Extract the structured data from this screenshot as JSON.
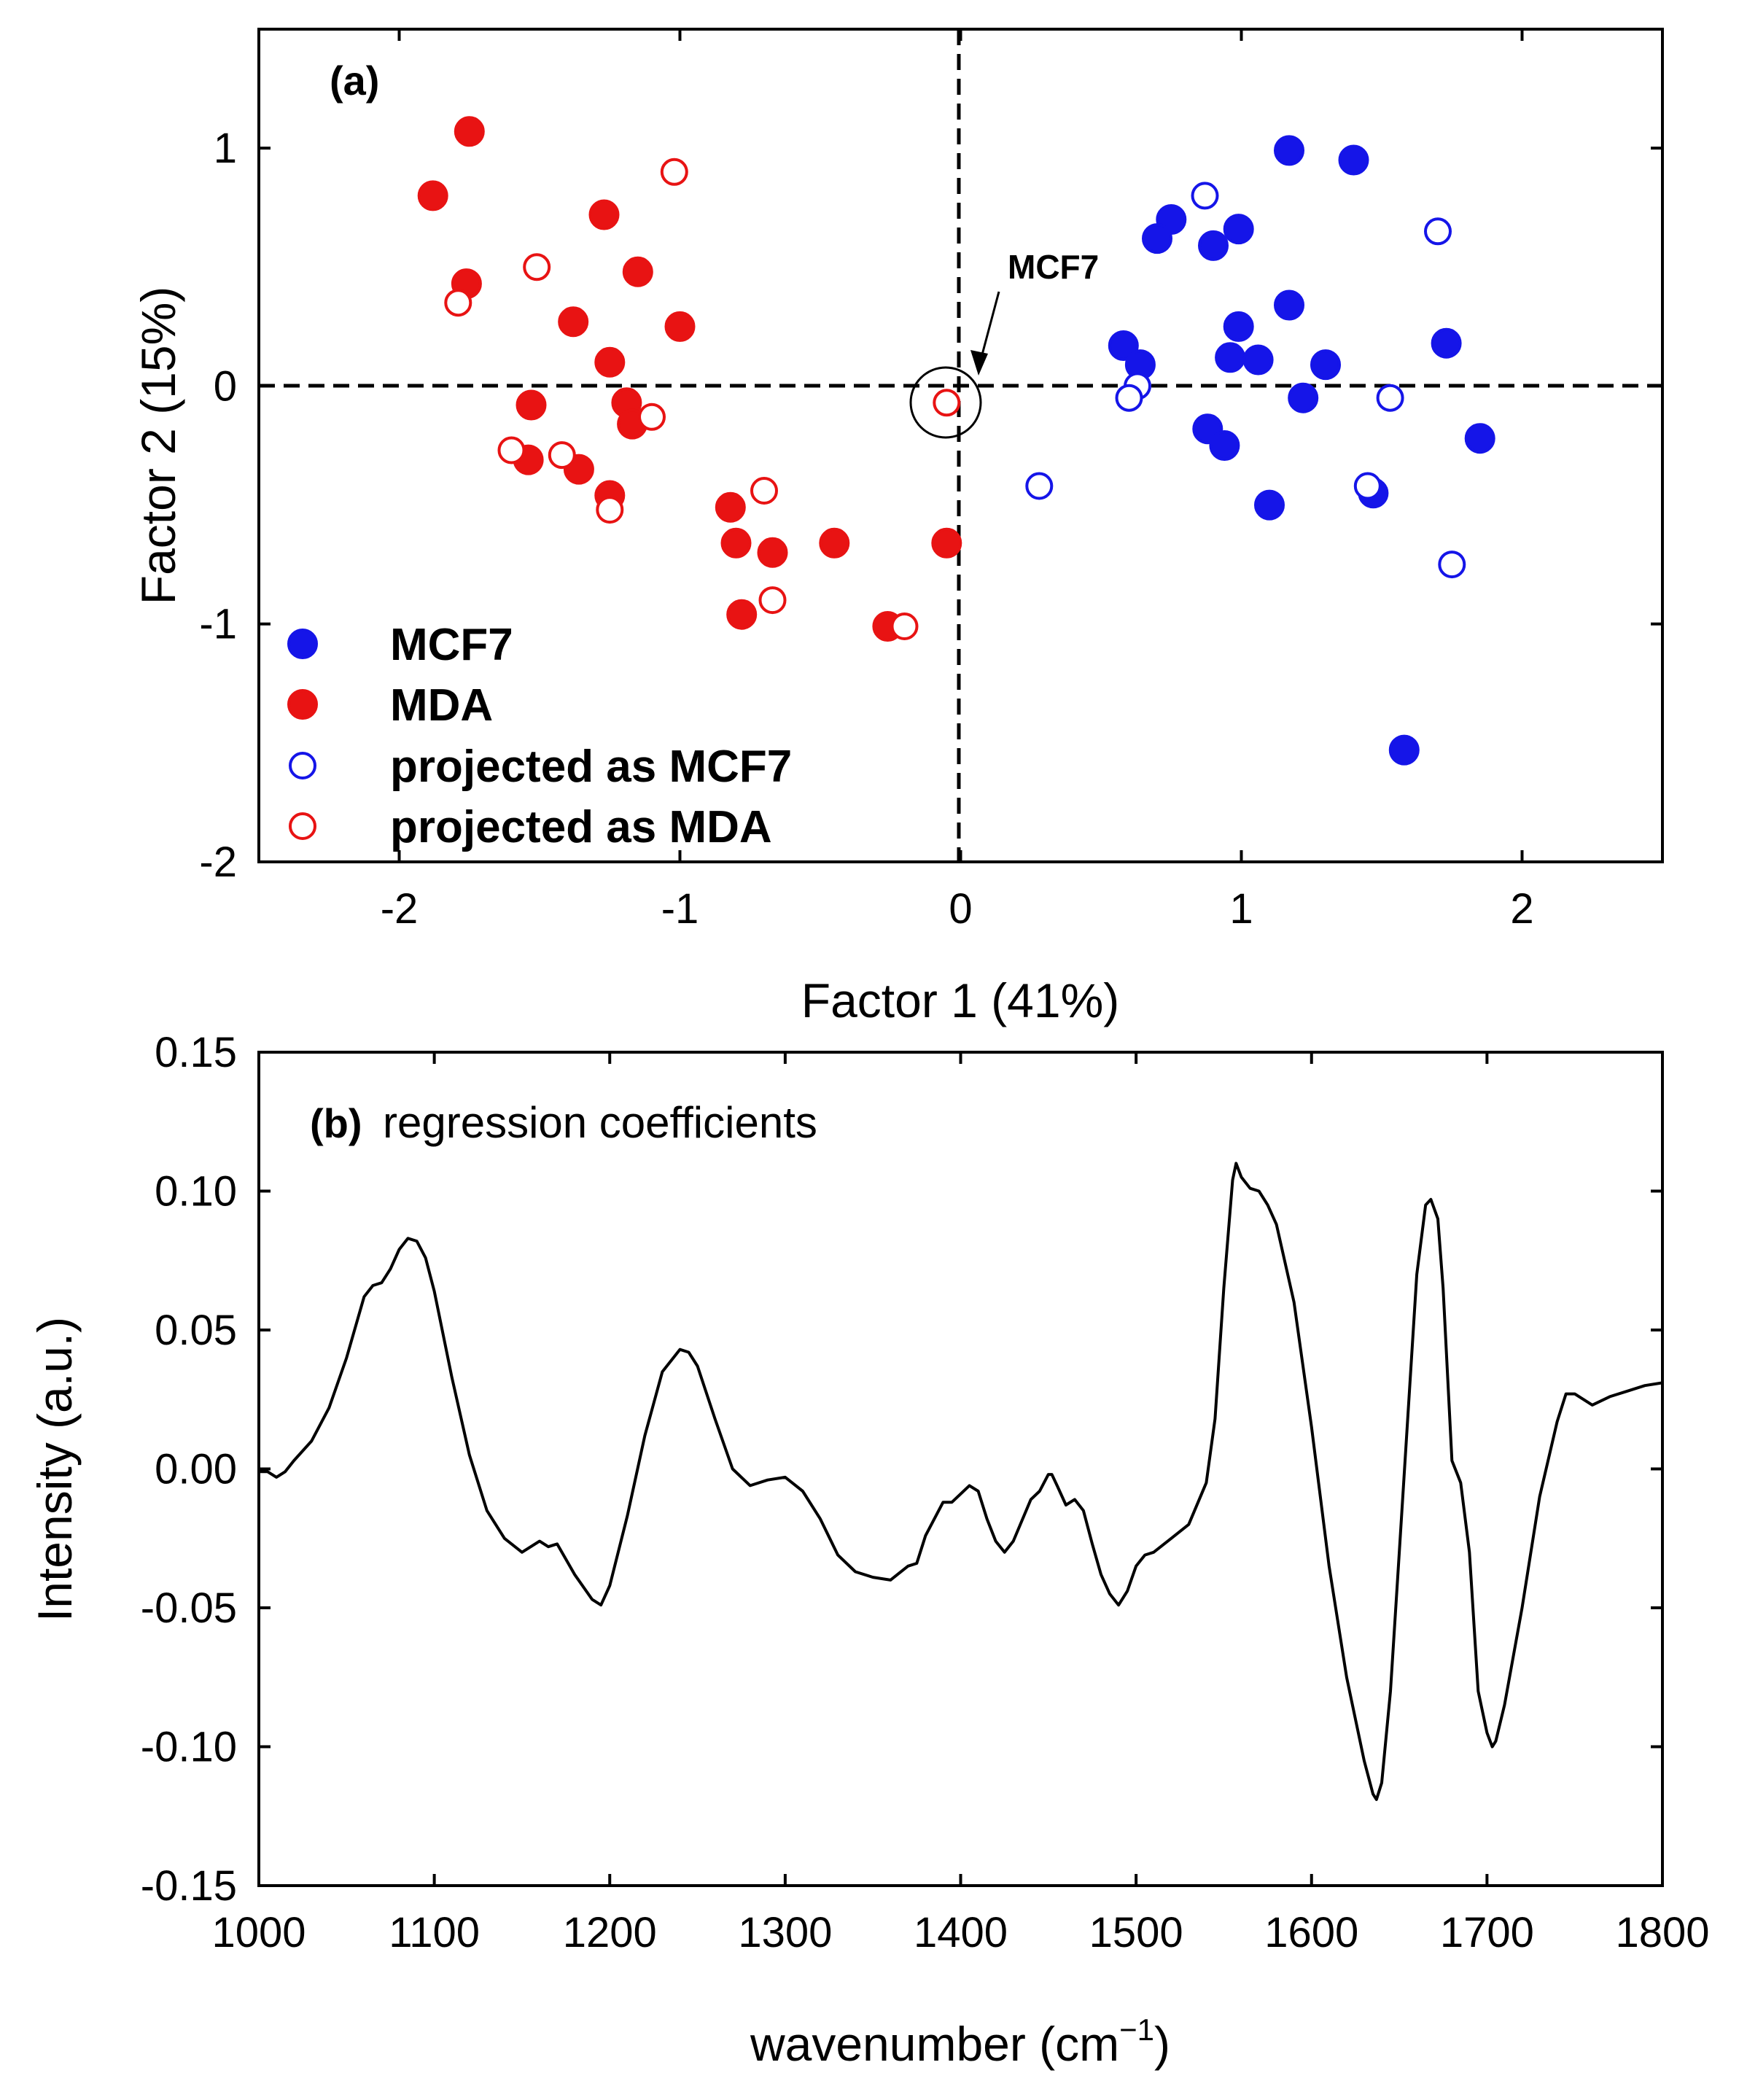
{
  "chart_data": [
    {
      "type": "scatter",
      "panel_label": "(a)",
      "xlabel": "Factor 1 (41%)",
      "ylabel": "Factor 2 (15%)",
      "xlim": [
        -2.5,
        2.5
      ],
      "ylim": [
        -2,
        1.5
      ],
      "xticks": [
        -2,
        -1,
        0,
        1,
        2
      ],
      "yticks": [
        -2,
        -1,
        0,
        1
      ],
      "xtick_labels": [
        "-2",
        "-1",
        "0",
        "1",
        "2"
      ],
      "ytick_labels": [
        "-2",
        "-1",
        "0",
        "1"
      ],
      "reference_lines": "dashed lines at x = 0 and y = 0",
      "annotation": {
        "text": "MCF7",
        "target": [
          -0.05,
          -0.07
        ]
      },
      "legend_position": "bottom-left",
      "series": [
        {
          "name": "MCF7",
          "marker": "filled",
          "color": "#1515e8",
          "points": [
            [
              1.17,
              0.99
            ],
            [
              1.4,
              0.95
            ],
            [
              0.75,
              0.7
            ],
            [
              0.7,
              0.62
            ],
            [
              0.9,
              0.59
            ],
            [
              0.99,
              0.66
            ],
            [
              1.17,
              0.34
            ],
            [
              0.99,
              0.25
            ],
            [
              0.58,
              0.17
            ],
            [
              0.64,
              0.09
            ],
            [
              0.96,
              0.12
            ],
            [
              1.06,
              0.11
            ],
            [
              1.3,
              0.09
            ],
            [
              1.73,
              0.18
            ],
            [
              1.22,
              -0.05
            ],
            [
              0.88,
              -0.18
            ],
            [
              0.94,
              -0.25
            ],
            [
              1.85,
              -0.22
            ],
            [
              1.47,
              -0.45
            ],
            [
              1.1,
              -0.5
            ],
            [
              1.58,
              -1.53
            ]
          ]
        },
        {
          "name": "MDA",
          "marker": "filled",
          "color": "#e81313",
          "points": [
            [
              -1.75,
              1.07
            ],
            [
              -1.88,
              0.8
            ],
            [
              -1.27,
              0.72
            ],
            [
              -1.15,
              0.48
            ],
            [
              -1.76,
              0.43
            ],
            [
              -1.38,
              0.27
            ],
            [
              -1.0,
              0.25
            ],
            [
              -1.25,
              0.1
            ],
            [
              -1.19,
              -0.07
            ],
            [
              -1.53,
              -0.08
            ],
            [
              -1.17,
              -0.16
            ],
            [
              -1.54,
              -0.31
            ],
            [
              -1.36,
              -0.35
            ],
            [
              -1.25,
              -0.46
            ],
            [
              -0.82,
              -0.51
            ],
            [
              -0.8,
              -0.66
            ],
            [
              -0.67,
              -0.7
            ],
            [
              -0.45,
              -0.66
            ],
            [
              -0.05,
              -0.66
            ],
            [
              -0.78,
              -0.96
            ],
            [
              -0.26,
              -1.01
            ]
          ]
        },
        {
          "name": "projected as MCF7",
          "marker": "open",
          "color": "#1515e8",
          "points": [
            [
              0.87,
              0.8
            ],
            [
              1.7,
              0.65
            ],
            [
              0.63,
              0.0
            ],
            [
              0.6,
              -0.05
            ],
            [
              1.53,
              -0.05
            ],
            [
              0.28,
              -0.42
            ],
            [
              1.45,
              -0.42
            ],
            [
              1.75,
              -0.75
            ]
          ]
        },
        {
          "name": "projected as MDA",
          "marker": "open",
          "color": "#e81313",
          "points": [
            [
              -1.02,
              0.9
            ],
            [
              -1.51,
              0.5
            ],
            [
              -1.79,
              0.35
            ],
            [
              -1.1,
              -0.13
            ],
            [
              -1.6,
              -0.27
            ],
            [
              -1.42,
              -0.29
            ],
            [
              -1.25,
              -0.52
            ],
            [
              -0.7,
              -0.44
            ],
            [
              -0.67,
              -0.9
            ],
            [
              -0.2,
              -1.01
            ],
            [
              -0.05,
              -0.07
            ]
          ]
        }
      ]
    },
    {
      "type": "line",
      "panel_label": "(b)",
      "title": "regression coefficients",
      "xlabel_main": "wavenumber (cm",
      "xlabel_sup": "−1",
      "xlabel_close": ")",
      "ylabel": "Intensity (a.u.)",
      "xlim": [
        1000,
        1800
      ],
      "ylim": [
        -0.15,
        0.15
      ],
      "xticks": [
        1000,
        1100,
        1200,
        1300,
        1400,
        1500,
        1600,
        1700,
        1800
      ],
      "yticks": [
        -0.15,
        -0.1,
        -0.05,
        0,
        0.05,
        0.1,
        0.15
      ],
      "xtick_labels": [
        "1000",
        "1100",
        "1200",
        "1300",
        "1400",
        "1500",
        "1600",
        "1700",
        "1800"
      ],
      "ytick_labels": [
        "-0.15",
        "-0.10",
        "-0.05",
        "0.00",
        "0.05",
        "0.10",
        "0.15"
      ],
      "series": [
        {
          "name": "regression coefficients",
          "color": "#000000",
          "x": [
            1000,
            1005,
            1010,
            1015,
            1020,
            1030,
            1040,
            1050,
            1060,
            1065,
            1070,
            1075,
            1080,
            1085,
            1090,
            1095,
            1100,
            1110,
            1120,
            1130,
            1140,
            1150,
            1160,
            1165,
            1170,
            1180,
            1190,
            1195,
            1200,
            1210,
            1220,
            1230,
            1240,
            1245,
            1250,
            1260,
            1270,
            1280,
            1290,
            1300,
            1310,
            1320,
            1330,
            1340,
            1350,
            1360,
            1370,
            1375,
            1380,
            1390,
            1395,
            1400,
            1405,
            1410,
            1415,
            1420,
            1425,
            1430,
            1440,
            1445,
            1450,
            1452,
            1455,
            1460,
            1465,
            1470,
            1475,
            1480,
            1485,
            1490,
            1495,
            1500,
            1505,
            1510,
            1520,
            1530,
            1540,
            1545,
            1550,
            1555,
            1557,
            1560,
            1565,
            1570,
            1575,
            1580,
            1590,
            1600,
            1610,
            1620,
            1630,
            1635,
            1637,
            1640,
            1645,
            1650,
            1655,
            1660,
            1665,
            1668,
            1672,
            1675,
            1680,
            1685,
            1690,
            1695,
            1700,
            1703,
            1705,
            1710,
            1720,
            1730,
            1740,
            1745,
            1750,
            1760,
            1770,
            1780,
            1790,
            1800
          ],
          "y": [
            -0.001,
            -0.001,
            -0.003,
            -0.001,
            0.003,
            0.01,
            0.022,
            0.04,
            0.062,
            0.066,
            0.067,
            0.072,
            0.079,
            0.083,
            0.082,
            0.076,
            0.064,
            0.033,
            0.005,
            -0.015,
            -0.025,
            -0.03,
            -0.026,
            -0.028,
            -0.027,
            -0.038,
            -0.047,
            -0.049,
            -0.042,
            -0.017,
            0.012,
            0.035,
            0.043,
            0.042,
            0.037,
            0.018,
            0.0,
            -0.006,
            -0.004,
            -0.003,
            -0.008,
            -0.018,
            -0.031,
            -0.037,
            -0.039,
            -0.04,
            -0.035,
            -0.034,
            -0.024,
            -0.012,
            -0.012,
            -0.009,
            -0.006,
            -0.008,
            -0.018,
            -0.026,
            -0.03,
            -0.026,
            -0.011,
            -0.008,
            -0.002,
            -0.002,
            -0.006,
            -0.013,
            -0.011,
            -0.015,
            -0.027,
            -0.038,
            -0.045,
            -0.049,
            -0.044,
            -0.035,
            -0.031,
            -0.03,
            -0.025,
            -0.02,
            -0.005,
            0.018,
            0.065,
            0.104,
            0.11,
            0.105,
            0.101,
            0.1,
            0.095,
            0.088,
            0.06,
            0.015,
            -0.035,
            -0.075,
            -0.105,
            -0.117,
            -0.119,
            -0.113,
            -0.08,
            -0.03,
            0.02,
            0.07,
            0.095,
            0.097,
            0.09,
            0.065,
            0.003,
            -0.005,
            -0.03,
            -0.08,
            -0.095,
            -0.1,
            -0.098,
            -0.085,
            -0.05,
            -0.01,
            0.017,
            0.027,
            0.027,
            0.023,
            0.026,
            0.028,
            0.03,
            0.031
          ]
        }
      ]
    }
  ],
  "legend": [
    {
      "label": "MCF7",
      "marker": "filled",
      "color": "#1515e8"
    },
    {
      "label": "MDA",
      "marker": "filled",
      "color": "#e81313"
    },
    {
      "label": "projected as MCF7",
      "marker": "open",
      "color": "#1515e8"
    },
    {
      "label": "projected as MDA",
      "marker": "open",
      "color": "#e81313"
    }
  ]
}
